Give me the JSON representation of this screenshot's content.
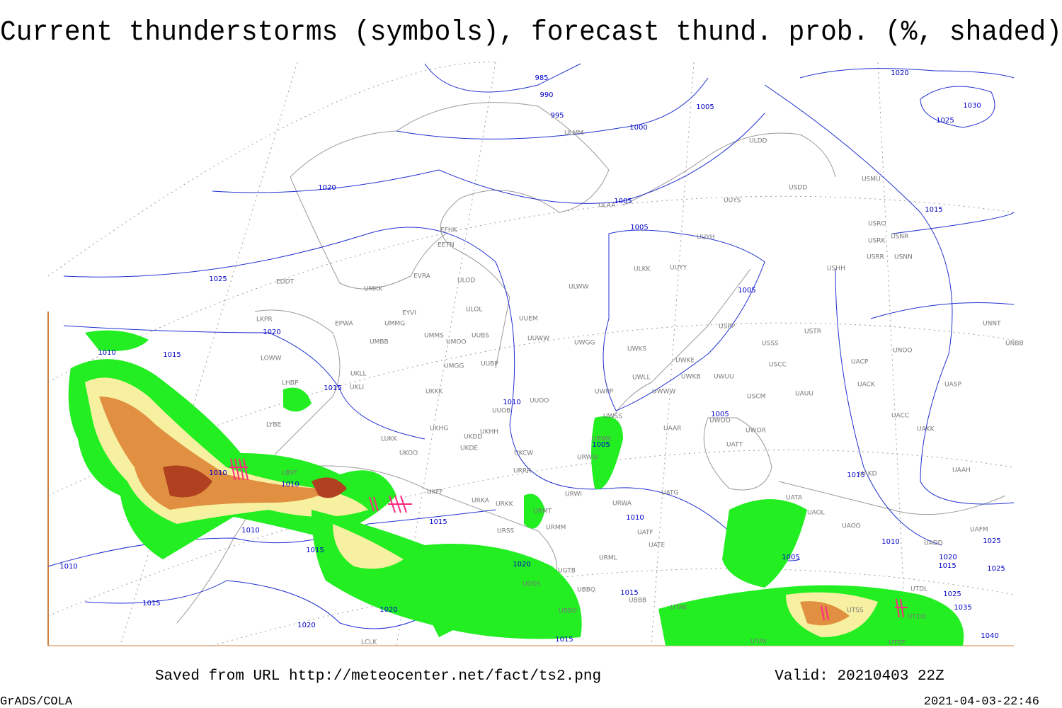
{
  "title": "Current thunderstorms (symbols), forecast thund. prob. (%, shaded)",
  "footer": {
    "source": "Saved from URL http://meteocenter.net/fact/ts2.png",
    "valid": "Valid: 20210403 22Z",
    "software": "GrADS/COLA",
    "timestamp": "2021-04-03-22:46"
  },
  "isobar_labels": [
    "985",
    "990",
    "995",
    "1000",
    "1005",
    "1020",
    "1030",
    "1025",
    "1020",
    "1005",
    "1015",
    "1005",
    "1025",
    "1005",
    "1020",
    "1010",
    "1015",
    "1015",
    "1010",
    "1005",
    "1005",
    "1010",
    "1010",
    "1015",
    "1015",
    "1010",
    "1010",
    "1015",
    "1010",
    "1005",
    "1010",
    "1020",
    "1020",
    "1015",
    "1025",
    "1025",
    "1015",
    "1025",
    "1015",
    "1020",
    "1035",
    "1020",
    "1015",
    "1040"
  ],
  "stations": [
    "EFHK",
    "EETN",
    "EVRA",
    "ULOD",
    "EDDT",
    "UMKK",
    "ULWW",
    "UUYY",
    "ULKK",
    "UUYH",
    "UUYS",
    "ULAA",
    "ULMM",
    "ULDD",
    "USDD",
    "USMU",
    "USRO",
    "USRK",
    "USRR",
    "USNR",
    "USNN",
    "USHH",
    "EYVI",
    "ULOL",
    "UUEM",
    "LKPR",
    "EPWA",
    "UMMG",
    "UMMS",
    "UMOO",
    "UUBS",
    "UUWW",
    "UWGG",
    "UWKS",
    "USPP",
    "USTR",
    "USSS",
    "UNNT",
    "UNBB",
    "LOWW",
    "UMBB",
    "UUBP",
    "UWKE",
    "UNOO",
    "UACP",
    "USCC",
    "LHBP",
    "UKLL",
    "UKLI",
    "UMGG",
    "UWLL",
    "UWKB",
    "UWUU",
    "UACK",
    "UASP",
    "UKKK",
    "UWPP",
    "UWWW",
    "USCM",
    "UAUU",
    "UUOO",
    "UUOB",
    "LYBE",
    "UWSS",
    "UWOO",
    "UWOR",
    "UATT",
    "UAAR",
    "UACC",
    "UAKK",
    "LUKK",
    "UKHG",
    "UKDD",
    "UKHH",
    "UKDE",
    "UKOO",
    "UKCW",
    "URWW",
    "URWK",
    "LBSF",
    "UAKD",
    "UAAH",
    "URRR",
    "UKFF",
    "URWI",
    "UATG",
    "URKA",
    "URKK",
    "URWA",
    "URMT",
    "UAOL",
    "UATA",
    "URMM",
    "URSS",
    "UATE",
    "UATF",
    "UAOO",
    "UADD",
    "UAFM",
    "URML",
    "UGTB",
    "UTDL",
    "UBBQ",
    "UBBB",
    "UTAK",
    "UDSS",
    "UTSS",
    "UTDD",
    "UTST",
    "LCLK",
    "UBBG",
    "UTAV"
  ]
}
